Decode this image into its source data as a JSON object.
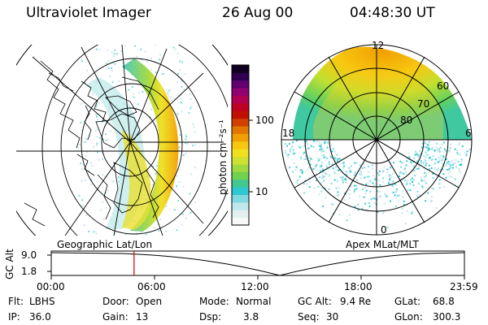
{
  "header": {
    "title": "Ultraviolet Imager",
    "date": "26 Aug 00",
    "time": "04:48:30 UT"
  },
  "left_panel": {
    "caption": "Geographic Lat/Lon"
  },
  "right_panel": {
    "caption": "Apex MLat/MLT",
    "mlt_labels": [
      "12",
      "18",
      "6",
      "0"
    ],
    "lat_labels": [
      "60",
      "70",
      "80"
    ]
  },
  "colorbar": {
    "unit_label": "photon cm⁻²s⁻¹",
    "ticks": [
      "100",
      "10"
    ],
    "colors": [
      "#f8f8f8",
      "#e4f0f0",
      "#c0e8ec",
      "#80d8e0",
      "#30c8d0",
      "#40c890",
      "#70d050",
      "#a0d840",
      "#d0e030",
      "#f0e020",
      "#f8c810",
      "#f0a000",
      "#e07800",
      "#d04000",
      "#c01000",
      "#c00020",
      "#b00050",
      "#900070",
      "#600070",
      "#300050",
      "#100020"
    ]
  },
  "timeline": {
    "axis_label": "GC Alt",
    "y_ticks": [
      "9.0",
      "1.8"
    ],
    "x_ticks": [
      "00:00",
      "06:00",
      "12:00",
      "18:00",
      "23:59"
    ],
    "current_time_hours": 4.81,
    "marker_color": "#cc0000"
  },
  "info": {
    "flt_label": "Flt:",
    "flt_value": "LBHS",
    "ip_label": "IP:",
    "ip_value": "36.0",
    "door_label": "Door:",
    "door_value": "Open",
    "gain_label": "Gain:",
    "gain_value": "13",
    "mode_label": "Mode:",
    "mode_value": "Normal",
    "dsp_label": "Dsp:",
    "dsp_value": "3.8",
    "gcalt_label": "GC Alt:",
    "gcalt_value": "9.4 Re",
    "seq_label": "Seq:",
    "seq_value": "30",
    "glat_label": "GLat:",
    "glat_value": "68.8",
    "glon_label": "GLon:",
    "glon_value": "300.3"
  }
}
